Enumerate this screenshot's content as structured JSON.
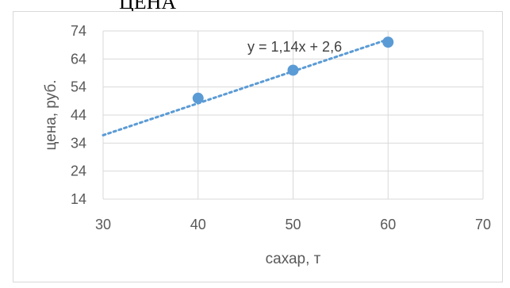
{
  "document": {
    "top_text": "ЦЕНА"
  },
  "chart_data": {
    "type": "scatter",
    "x": [
      40,
      50,
      60
    ],
    "y": [
      50,
      60,
      70
    ],
    "xlabel": "сахар, т",
    "ylabel": "цена, руб.",
    "xlim": [
      30,
      70
    ],
    "ylim": [
      14,
      74
    ],
    "x_ticks": [
      "30",
      "40",
      "50",
      "60",
      "70"
    ],
    "y_ticks": [
      "14",
      "24",
      "34",
      "44",
      "54",
      "64",
      "74"
    ],
    "grid": true,
    "marker_color": "#5b9bd5",
    "trendline": {
      "type": "linear",
      "slope": 1.14,
      "intercept": 2.6,
      "equation_label": "y = 1,14x + 2,6",
      "style": "dotted",
      "color": "#5b9bd5",
      "x_range": [
        30,
        60
      ]
    }
  }
}
